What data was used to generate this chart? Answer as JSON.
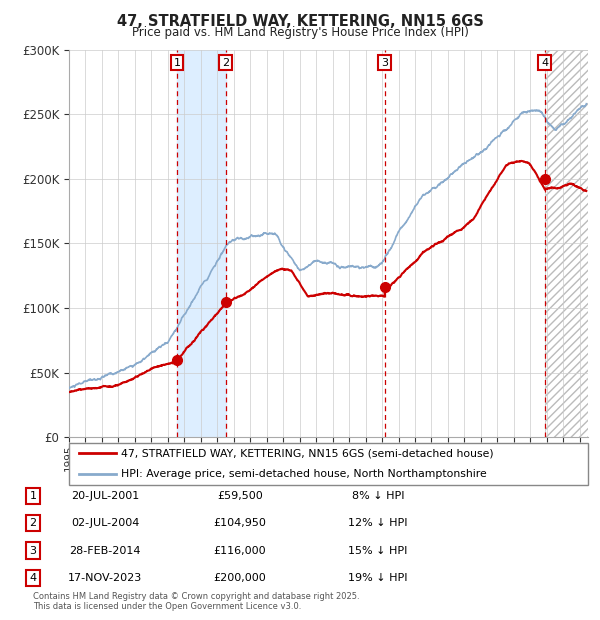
{
  "title": "47, STRATFIELD WAY, KETTERING, NN15 6GS",
  "subtitle": "Price paid vs. HM Land Registry's House Price Index (HPI)",
  "legend_line1": "47, STRATFIELD WAY, KETTERING, NN15 6GS (semi-detached house)",
  "legend_line2": "HPI: Average price, semi-detached house, North Northamptonshire",
  "footer1": "Contains HM Land Registry data © Crown copyright and database right 2025.",
  "footer2": "This data is licensed under the Open Government Licence v3.0.",
  "sale_color": "#cc0000",
  "hpi_color": "#88aacc",
  "shade_color": "#ddeeff",
  "plot_bg": "#ffffff",
  "ylim": [
    0,
    300000
  ],
  "yticks": [
    0,
    50000,
    100000,
    150000,
    200000,
    250000,
    300000
  ],
  "ytick_labels": [
    "£0",
    "£50K",
    "£100K",
    "£150K",
    "£200K",
    "£250K",
    "£300K"
  ],
  "xstart": 1995.0,
  "xend": 2026.5,
  "sale_dates": [
    2001.55,
    2004.5,
    2014.16,
    2023.88
  ],
  "sale_prices": [
    59500,
    104950,
    116000,
    200000
  ],
  "sale_labels": [
    "1",
    "2",
    "3",
    "4"
  ],
  "sale_info": [
    {
      "num": "1",
      "date": "20-JUL-2001",
      "price": "£59,500",
      "pct": "8% ↓ HPI"
    },
    {
      "num": "2",
      "date": "02-JUL-2004",
      "price": "£104,950",
      "pct": "12% ↓ HPI"
    },
    {
      "num": "3",
      "date": "28-FEB-2014",
      "price": "£116,000",
      "pct": "15% ↓ HPI"
    },
    {
      "num": "4",
      "date": "17-NOV-2023",
      "price": "£200,000",
      "pct": "19% ↓ HPI"
    }
  ],
  "shaded_regions": [
    [
      2001.55,
      2004.5
    ]
  ],
  "hatch_region": [
    2023.88,
    2026.5
  ]
}
